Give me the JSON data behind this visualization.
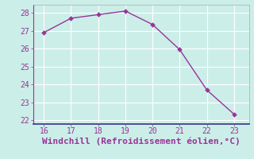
{
  "x": [
    16,
    17,
    18,
    19,
    20,
    21,
    22,
    23
  ],
  "y": [
    26.9,
    27.7,
    27.9,
    28.1,
    27.35,
    25.95,
    23.7,
    22.35
  ],
  "line_color": "#993399",
  "marker_color": "#993399",
  "bg_color": "#cceee8",
  "grid_color": "#ffffff",
  "xlabel": "Windchill (Refroidissement éolien,°C)",
  "xlabel_color": "#993399",
  "xlim": [
    15.6,
    23.55
  ],
  "ylim": [
    21.8,
    28.45
  ],
  "xticks": [
    16,
    17,
    18,
    19,
    20,
    21,
    22,
    23
  ],
  "yticks": [
    22,
    23,
    24,
    25,
    26,
    27,
    28
  ],
  "tick_color": "#993399",
  "tick_fontsize": 7,
  "xlabel_fontsize": 8,
  "marker_size": 3,
  "line_width": 1.0,
  "spine_color": "#993399",
  "bottom_spine_color": "#3333aa"
}
